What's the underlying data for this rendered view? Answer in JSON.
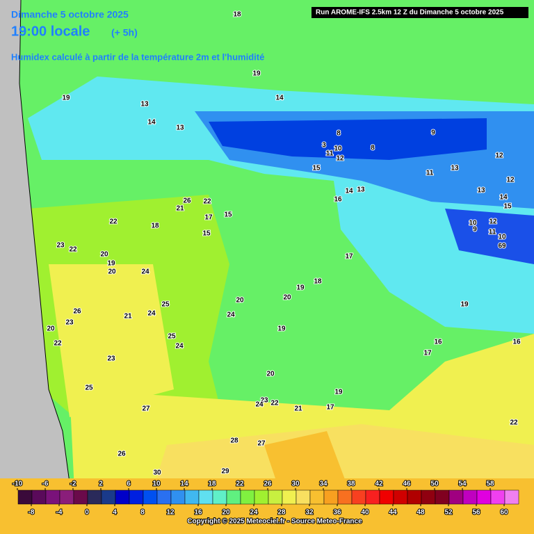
{
  "header": {
    "date": "Dimanche 5 octobre 2025",
    "time": "19:00 locale",
    "offset": "(+ 5h)",
    "subtitle": "Humidex calculé à partir de la température 2m et l'humidité",
    "run": "Run AROME-IFS 2.5km 12 Z du Dimanche 5 octobre 2025"
  },
  "map_labels": [
    18,
    19,
    19,
    14,
    13,
    14,
    13,
    8,
    9,
    3,
    10,
    8,
    11,
    12,
    12,
    15,
    11,
    13,
    12,
    14,
    13,
    13,
    14,
    16,
    15,
    26,
    22,
    21,
    17,
    15,
    22,
    18,
    10,
    12,
    9,
    11,
    10,
    69,
    15,
    23,
    22,
    20,
    17,
    19,
    20,
    24,
    18,
    19,
    20,
    20,
    19,
    25,
    26,
    21,
    24,
    23,
    24,
    20,
    19,
    25,
    22,
    24,
    16,
    16,
    17,
    23,
    20,
    25,
    19,
    23,
    24,
    22,
    17,
    21,
    27,
    22,
    26,
    28,
    27,
    29,
    30
  ],
  "colorbar": {
    "ticks_top": [
      -10,
      -6,
      -2,
      2,
      6,
      10,
      14,
      18,
      22,
      26,
      30,
      34,
      38,
      42,
      46,
      50,
      54,
      58
    ],
    "ticks_bottom": [
      -8,
      -4,
      0,
      4,
      8,
      12,
      16,
      20,
      24,
      28,
      32,
      36,
      40,
      44,
      48,
      52,
      56,
      60
    ],
    "colors": [
      "#3a0a3a",
      "#5a0a5a",
      "#7a127a",
      "#8a1e7a",
      "#6a0a4a",
      "#2a2a5a",
      "#1a3a8a",
      "#0000c8",
      "#0020e0",
      "#0050f0",
      "#2a70f0",
      "#3090f0",
      "#40b8f0",
      "#60e0f0",
      "#60f0c8",
      "#60f080",
      "#80f040",
      "#a0f030",
      "#c8f040",
      "#f0f050",
      "#f8e060",
      "#f8c030",
      "#f8a020",
      "#f87020",
      "#f84020",
      "#f82020",
      "#f00000",
      "#d00000",
      "#b00000",
      "#900010",
      "#800020",
      "#a00080",
      "#c000c0",
      "#e000e0",
      "#f040f0",
      "#f080f0"
    ]
  },
  "footer": {
    "copyright": "Copyright © 2025 Meteociel.fr - Source Meteo-France"
  }
}
